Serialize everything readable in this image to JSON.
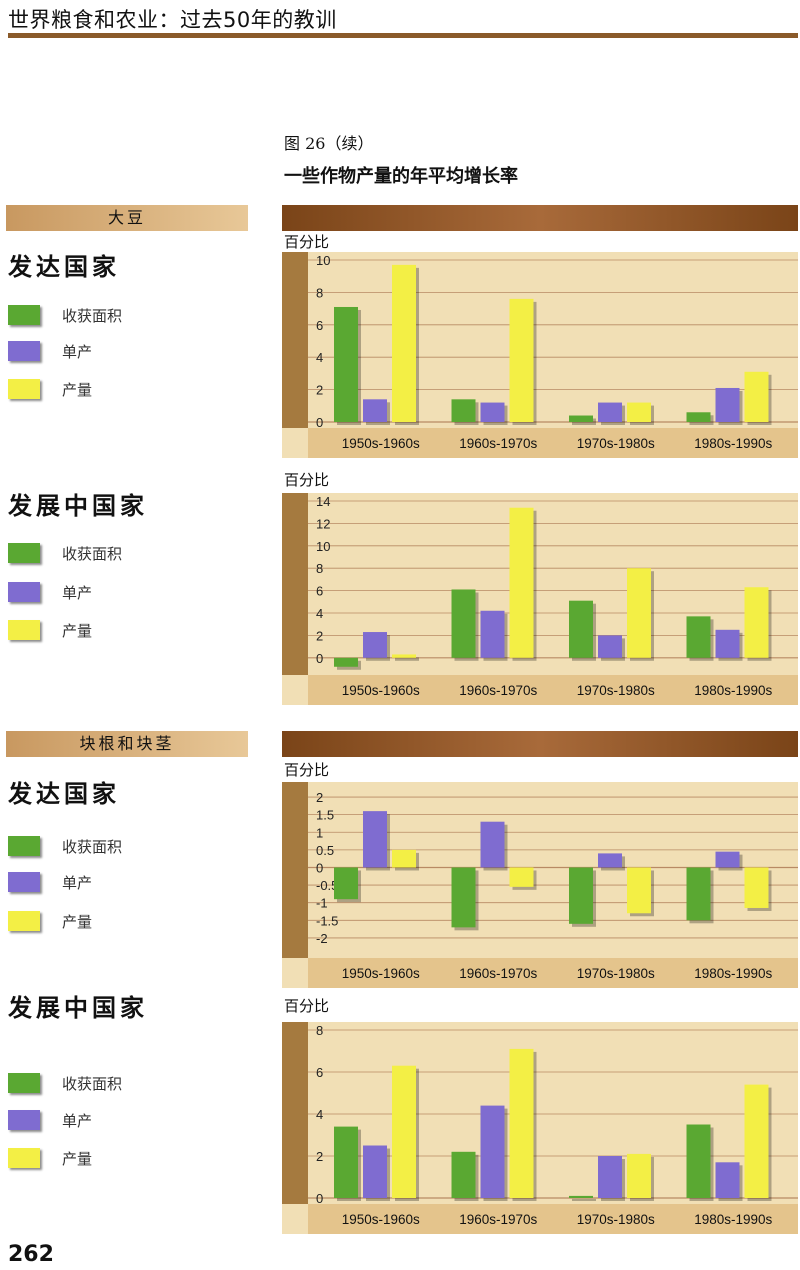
{
  "header": {
    "book_title": "世界粮食和农业：过去50年的教训"
  },
  "figure": {
    "label": "图 26（续）",
    "title": "一些作物产量的年平均增长率"
  },
  "page_number": "262",
  "colors": {
    "area": "#5aa832",
    "yield": "#7f6cd0",
    "production": "#f3ef45",
    "chart_bg": "#f1dfb5",
    "left_bar": "#a57a3f",
    "label_band": "#e4c48c",
    "grid": "#b88a64"
  },
  "crops": [
    {
      "name": "大豆"
    },
    {
      "name": "块根和块茎"
    }
  ],
  "legend": {
    "area_label": "收获面积",
    "yield_label": "单产",
    "production_label": "产量"
  },
  "chart_data": [
    {
      "type": "bar",
      "crop_index": 0,
      "group_title": "发达国家",
      "ylabel": "百分比",
      "categories": [
        "1950s-1960s",
        "1960s-1970s",
        "1970s-1980s",
        "1980s-1990s"
      ],
      "ylim": [
        0,
        10
      ],
      "yticks": [
        0,
        2,
        4,
        6,
        8,
        10
      ],
      "tick_labels": [
        "0",
        "2",
        "4",
        "6",
        "8",
        "10"
      ],
      "series": [
        {
          "name": "收获面积",
          "values": [
            7.1,
            1.4,
            0.4,
            0.6
          ]
        },
        {
          "name": "单产",
          "values": [
            1.4,
            1.2,
            1.2,
            2.1
          ]
        },
        {
          "name": "产量",
          "values": [
            9.7,
            7.6,
            1.2,
            3.1
          ]
        }
      ]
    },
    {
      "type": "bar",
      "crop_index": 0,
      "group_title": "发展中国家",
      "ylabel": "百分比",
      "categories": [
        "1950s-1960s",
        "1960s-1970s",
        "1970s-1980s",
        "1980s-1990s"
      ],
      "ylim": [
        -1,
        14
      ],
      "yticks": [
        0,
        2,
        4,
        6,
        8,
        10,
        12,
        14
      ],
      "tick_labels": [
        "0",
        "2",
        "4",
        "6",
        "8",
        "10",
        "12",
        "14"
      ],
      "series": [
        {
          "name": "收获面积",
          "values": [
            -0.8,
            6.1,
            5.1,
            3.7
          ]
        },
        {
          "name": "单产",
          "values": [
            2.3,
            4.2,
            2.0,
            2.5
          ]
        },
        {
          "name": "产量",
          "values": [
            0.3,
            13.4,
            8.0,
            6.3
          ]
        }
      ]
    },
    {
      "type": "bar",
      "crop_index": 1,
      "group_title": "发达国家",
      "ylabel": "百分比",
      "categories": [
        "1950s-1960s",
        "1960s-1970s",
        "1970s-1980s",
        "1980s-1990s"
      ],
      "ylim": [
        -2.4,
        2.2
      ],
      "yticks": [
        -2,
        -1.5,
        -1,
        -0.5,
        0,
        0.5,
        1,
        1.5,
        2
      ],
      "tick_labels": [
        "-2",
        "-1.5",
        "-1",
        "-0.5",
        "0",
        "0.5",
        "1",
        "1.5",
        "2"
      ],
      "series": [
        {
          "name": "收获面积",
          "values": [
            -0.9,
            -1.7,
            -1.6,
            -1.5
          ]
        },
        {
          "name": "单产",
          "values": [
            1.6,
            1.3,
            0.4,
            0.45
          ]
        },
        {
          "name": "产量",
          "values": [
            0.5,
            -0.55,
            -1.3,
            -1.15
          ]
        }
      ]
    },
    {
      "type": "bar",
      "crop_index": 1,
      "group_title": "发展中国家",
      "ylabel": "百分比",
      "categories": [
        "1950s-1960s",
        "1960s-1970s",
        "1970s-1980s",
        "1980s-1990s"
      ],
      "ylim": [
        0,
        8
      ],
      "yticks": [
        0,
        2,
        4,
        6,
        8
      ],
      "tick_labels": [
        "0",
        "2",
        "4",
        "6",
        "8"
      ],
      "series": [
        {
          "name": "收获面积",
          "values": [
            3.4,
            2.2,
            0.1,
            3.5
          ]
        },
        {
          "name": "单产",
          "values": [
            2.5,
            4.4,
            2.0,
            1.7
          ]
        },
        {
          "name": "产量",
          "values": [
            6.3,
            7.1,
            2.1,
            5.4
          ]
        }
      ]
    }
  ]
}
